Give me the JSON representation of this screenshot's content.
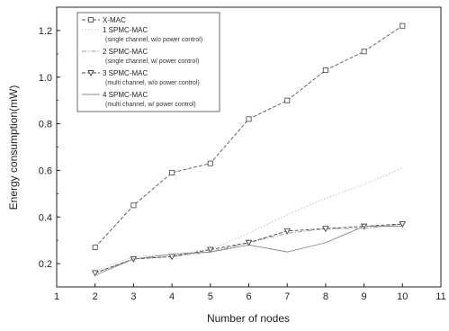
{
  "chart_data": {
    "type": "line",
    "xlabel": "Number of nodes",
    "ylabel": "Energy consumption(mW)",
    "xlim": [
      1,
      11
    ],
    "ylim": [
      0.1,
      1.3
    ],
    "xticks": [
      1,
      2,
      3,
      4,
      5,
      6,
      7,
      8,
      9,
      10,
      11
    ],
    "yticks": [
      0.2,
      0.4,
      0.6,
      0.8,
      1.0,
      1.2
    ],
    "ytick_labels": [
      "0.2",
      "0.4",
      "0.6",
      "0.8",
      "1.0",
      "1.2"
    ],
    "grid": false,
    "legend_position": "top-left",
    "series": [
      {
        "name": "X-MAC",
        "marker": "square",
        "dash": "dash",
        "color": "#555555",
        "x": [
          2,
          3,
          4,
          5,
          6,
          7,
          8,
          9,
          10
        ],
        "y": [
          0.27,
          0.45,
          0.59,
          0.63,
          0.82,
          0.9,
          1.03,
          1.11,
          1.22
        ]
      },
      {
        "name": "1 SPMC-MAC",
        "subtitle": "(single channel, w/o power control)",
        "marker": "none",
        "dash": "dot",
        "color": "#bbbbbb",
        "x": [
          2,
          3,
          4,
          5,
          6,
          7,
          8,
          9,
          10
        ],
        "y": [
          0.17,
          0.23,
          0.24,
          0.26,
          0.33,
          0.41,
          0.48,
          0.54,
          0.61
        ]
      },
      {
        "name": "2 SPMC-MAC",
        "subtitle": "(single channel, w/ power control)",
        "marker": "none",
        "dash": "dashdot",
        "color": "#999999",
        "x": [
          2,
          3,
          4,
          5,
          6,
          7,
          8,
          9,
          10
        ],
        "y": [
          0.16,
          0.22,
          0.23,
          0.25,
          0.29,
          0.33,
          0.35,
          0.35,
          0.37
        ]
      },
      {
        "name": "3 SPMC-MAC",
        "subtitle": "(multi channel, w/o power control)",
        "marker": "triangle-down",
        "dash": "dash",
        "color": "#444444",
        "x": [
          2,
          3,
          4,
          5,
          6,
          7,
          8,
          9,
          10
        ],
        "y": [
          0.16,
          0.22,
          0.23,
          0.26,
          0.29,
          0.34,
          0.35,
          0.36,
          0.37
        ]
      },
      {
        "name": "4 SPMC-MAC",
        "subtitle": "(multi channel, w/ power control)",
        "marker": "none",
        "dash": "solid",
        "color": "#888888",
        "x": [
          2,
          3,
          4,
          5,
          6,
          7,
          8,
          9,
          10
        ],
        "y": [
          0.15,
          0.22,
          0.24,
          0.25,
          0.28,
          0.25,
          0.29,
          0.36,
          0.36
        ]
      }
    ]
  }
}
